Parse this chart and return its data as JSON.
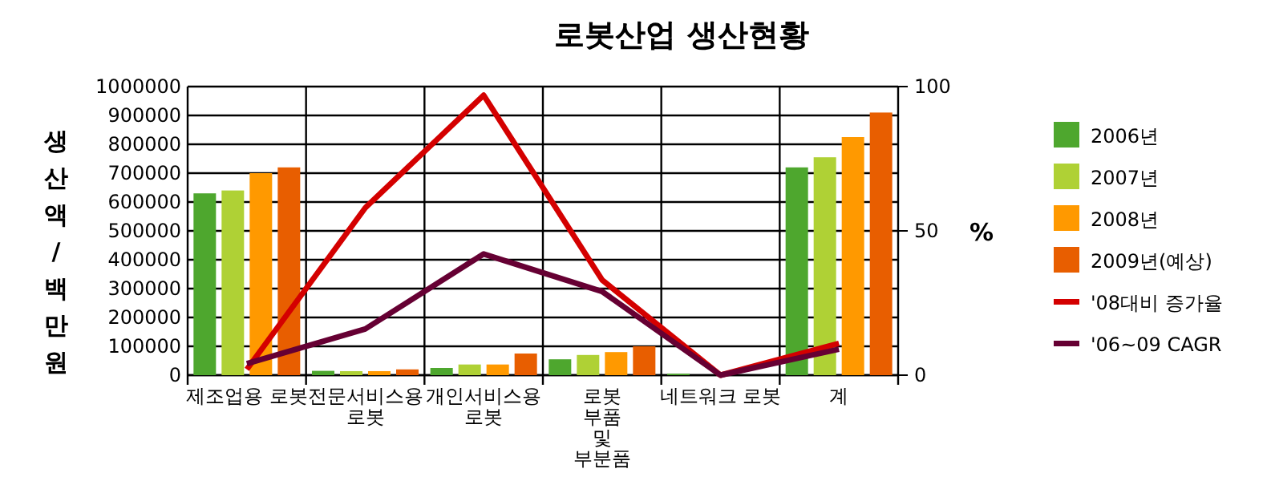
{
  "chart_data": {
    "type": "bar",
    "title": "로봇산업 생산현황",
    "ylabel": "생산액/백만원",
    "y2label": "%",
    "categories": [
      "제조업용 로봇",
      "전문서비스용\n로봇",
      "개인서비스용\n로봇",
      "로봇\n부품\n및\n부분품",
      "네트워크 로봇",
      "계"
    ],
    "series": [
      {
        "name": "2006년",
        "color": "#4ea72e",
        "values": [
          630000,
          15000,
          25000,
          55000,
          5000,
          720000
        ]
      },
      {
        "name": "2007년",
        "color": "#afd135",
        "values": [
          640000,
          14000,
          37000,
          70000,
          0,
          755000
        ]
      },
      {
        "name": "2008년",
        "color": "#ff9900",
        "values": [
          700000,
          14000,
          37000,
          80000,
          0,
          825000
        ]
      },
      {
        "name": "2009년(예상)",
        "color": "#e85e00",
        "values": [
          720000,
          20000,
          75000,
          100000,
          0,
          910000
        ]
      },
      {
        "name": "'08대비 증가율",
        "type": "line",
        "axis": "y2",
        "color": "#d40000",
        "values": [
          2,
          58,
          97,
          33,
          0,
          11
        ]
      },
      {
        "name": "'06~09 CAGR",
        "type": "line",
        "axis": "y2",
        "color": "#660033",
        "values": [
          4,
          16,
          42,
          29,
          0,
          9
        ]
      }
    ],
    "ylim": [
      0,
      1000000
    ],
    "yticks": [
      0,
      100000,
      200000,
      300000,
      400000,
      500000,
      600000,
      700000,
      800000,
      900000,
      1000000
    ],
    "y2lim": [
      0,
      100
    ],
    "y2ticks": [
      0,
      50,
      100
    ],
    "grid": true,
    "legend": "right"
  }
}
